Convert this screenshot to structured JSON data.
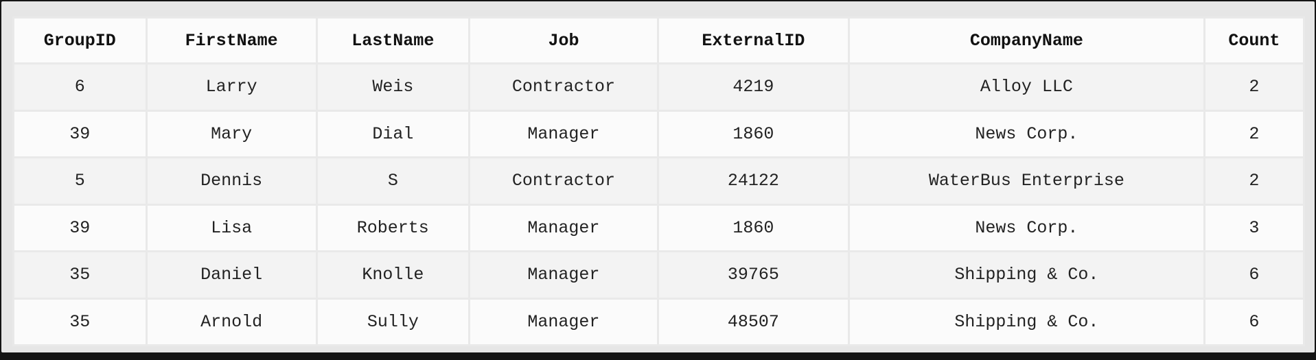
{
  "table": {
    "columns": [
      "GroupID",
      "FirstName",
      "LastName",
      "Job",
      "ExternalID",
      "CompanyName",
      "Count"
    ],
    "rows": [
      [
        "6",
        "Larry",
        "Weis",
        "Contractor",
        "4219",
        "Alloy LLC",
        "2"
      ],
      [
        "39",
        "Mary",
        "Dial",
        "Manager",
        "1860",
        "News Corp.",
        "2"
      ],
      [
        "5",
        "Dennis",
        "S",
        "Contractor",
        "24122",
        "WaterBus Enterprise",
        "2"
      ],
      [
        "39",
        "Lisa",
        "Roberts",
        "Manager",
        "1860",
        "News Corp.",
        "3"
      ],
      [
        "35",
        "Daniel",
        "Knolle",
        "Manager",
        "39765",
        "Shipping & Co.",
        "6"
      ],
      [
        "35",
        "Arnold",
        "Sully",
        "Manager",
        "48507",
        "Shipping & Co.",
        "6"
      ]
    ]
  }
}
